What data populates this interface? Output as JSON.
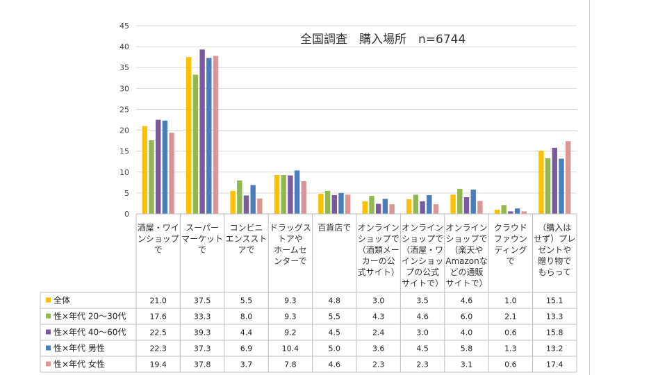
{
  "chart_data": {
    "type": "bar",
    "title": "全国調査　購入場所　n=6744",
    "ylim": [
      0,
      45
    ],
    "yticks": [
      "0",
      "5",
      "10",
      "15",
      "20",
      "25",
      "30",
      "35",
      "40",
      "45"
    ],
    "grid": true,
    "legend": "table-bottom",
    "categories": [
      [
        "酒屋・ワイ",
        "ンショップ",
        "で"
      ],
      [
        "スーパー",
        "マーケット",
        "で"
      ],
      [
        "コンビニ",
        "エンススト",
        "アで"
      ],
      [
        "ドラッグス",
        "トアや",
        "ホームセ",
        "ンターで"
      ],
      [
        "百貨店で"
      ],
      [
        "オンライン",
        "ショップで",
        "（酒類メー",
        "カーの公",
        "式サイト）"
      ],
      [
        "オンライン",
        "ショップで",
        "（酒屋・ワ",
        "インショッ",
        "プの公式",
        "サイトで）"
      ],
      [
        "オンライン",
        "ショップで",
        "（楽天や",
        "Amazonな",
        "どの通販",
        "サイトで）"
      ],
      [
        "クラウド",
        "ファウン",
        "ディング",
        "で"
      ],
      [
        "（購入は",
        "せず）プレ",
        "ゼントや",
        "贈り物で",
        "もらって"
      ]
    ],
    "series": [
      {
        "name": "全体",
        "color": "#FFC000",
        "values": [
          21.0,
          37.5,
          5.5,
          9.3,
          4.8,
          3.0,
          3.5,
          4.6,
          1.0,
          15.1
        ],
        "labels": [
          "21.0",
          "37.5",
          "5.5",
          "9.3",
          "4.8",
          "3.0",
          "3.5",
          "4.6",
          "1.0",
          "15.1"
        ]
      },
      {
        "name": "性×年代 20～30代",
        "color": "#92B94F",
        "values": [
          17.6,
          33.3,
          8.0,
          9.3,
          5.5,
          4.3,
          4.6,
          6.0,
          2.1,
          13.3
        ],
        "labels": [
          "17.6",
          "33.3",
          "8.0",
          "9.3",
          "5.5",
          "4.3",
          "4.6",
          "6.0",
          "2.1",
          "13.3"
        ]
      },
      {
        "name": "性×年代 40～60代",
        "color": "#7A5C9E",
        "values": [
          22.5,
          39.3,
          4.4,
          9.2,
          4.5,
          2.4,
          3.0,
          4.0,
          0.6,
          15.8
        ],
        "labels": [
          "22.5",
          "39.3",
          "4.4",
          "9.2",
          "4.5",
          "2.4",
          "3.0",
          "4.0",
          "0.6",
          "15.8"
        ]
      },
      {
        "name": "性×年代 男性",
        "color": "#4A7EBB",
        "values": [
          22.3,
          37.3,
          6.9,
          10.4,
          5.0,
          3.6,
          4.5,
          5.8,
          1.3,
          13.2
        ],
        "labels": [
          "22.3",
          "37.3",
          "6.9",
          "10.4",
          "5.0",
          "3.6",
          "4.5",
          "5.8",
          "1.3",
          "13.2"
        ]
      },
      {
        "name": "性×年代 女性",
        "color": "#DA9694",
        "values": [
          19.4,
          37.8,
          3.7,
          7.8,
          4.6,
          2.3,
          2.3,
          3.1,
          0.6,
          17.4
        ],
        "labels": [
          "19.4",
          "37.8",
          "3.7",
          "7.8",
          "4.6",
          "2.3",
          "2.3",
          "3.1",
          "0.6",
          "17.4"
        ]
      }
    ]
  }
}
